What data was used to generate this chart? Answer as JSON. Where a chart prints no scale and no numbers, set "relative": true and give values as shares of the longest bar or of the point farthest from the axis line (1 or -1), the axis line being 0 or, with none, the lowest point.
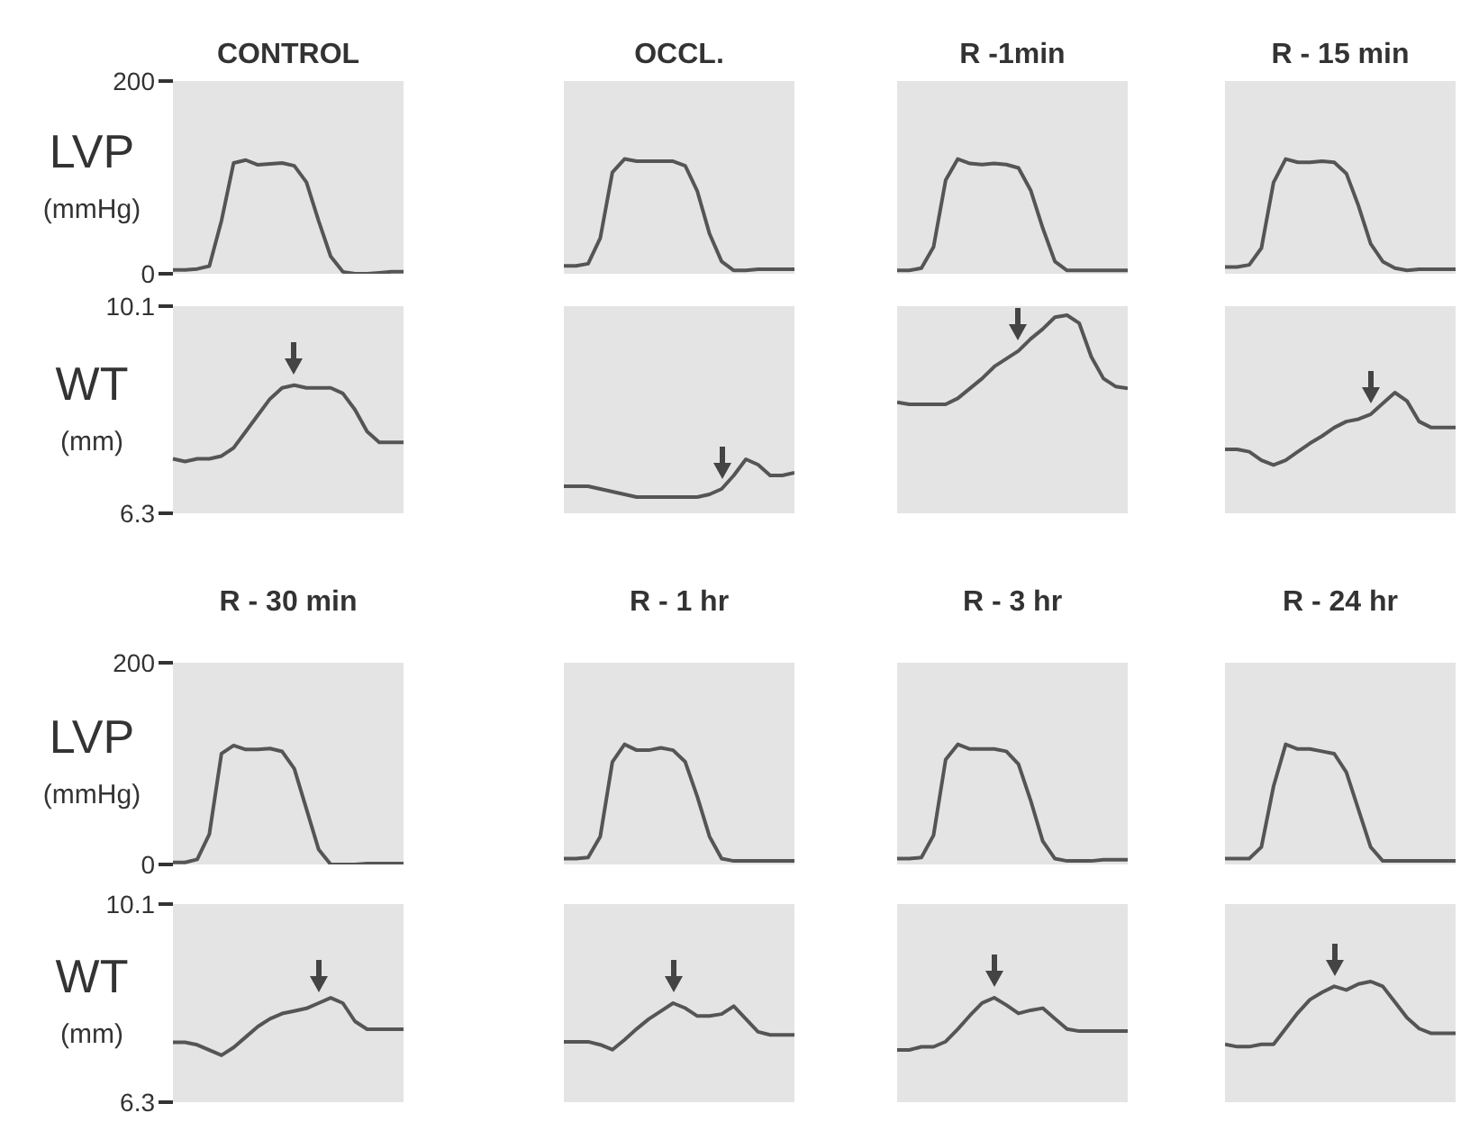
{
  "chart_data": [
    {
      "type": "line",
      "title": "CONTROL",
      "ylabel": "LVP (mmHg)",
      "categories": [
        null,
        null,
        null,
        null,
        null,
        null,
        null,
        null,
        null,
        null,
        null,
        null,
        null,
        null,
        null,
        null,
        null,
        null,
        null,
        null
      ],
      "series": [
        {
          "color": "#555555",
          "values": [
            4,
            4,
            5,
            8,
            55,
            115,
            118,
            113,
            114,
            115,
            112,
            95,
            55,
            18,
            2,
            0,
            0,
            1,
            2,
            2
          ]
        }
      ],
      "ylim": [
        0,
        200
      ],
      "yticks": [
        0,
        200
      ],
      "tick_labels": "y",
      "grid": false,
      "legend": false
    },
    {
      "type": "line",
      "ylabel": "WT (mm)",
      "categories": [
        null,
        null,
        null,
        null,
        null,
        null,
        null,
        null,
        null,
        null,
        null,
        null,
        null,
        null,
        null,
        null,
        null,
        null,
        null,
        null
      ],
      "series": [
        {
          "color": "#555555",
          "values": [
            7.3,
            7.25,
            7.3,
            7.3,
            7.35,
            7.5,
            7.8,
            8.1,
            8.4,
            8.6,
            8.65,
            8.6,
            8.6,
            8.6,
            8.5,
            8.2,
            7.8,
            7.6,
            7.6,
            7.6
          ]
        }
      ],
      "ylim": [
        6.3,
        10.1
      ],
      "yticks": [
        6.3,
        10.1
      ],
      "tick_labels": "y",
      "grid": false,
      "legend": false
    },
    {
      "type": "line",
      "title": "OCCL.",
      "relative": true,
      "categories": [
        null,
        null,
        null,
        null,
        null,
        null,
        null,
        null,
        null,
        null,
        null,
        null,
        null,
        null,
        null,
        null,
        null,
        null,
        null,
        null
      ],
      "series": [
        {
          "color": "#555555",
          "values": [
            0.04,
            0.04,
            0.06,
            0.29,
            0.88,
            1,
            0.98,
            0.98,
            0.98,
            0.98,
            0.94,
            0.71,
            0.33,
            0.08,
            0,
            0,
            0.01,
            0.01,
            0.01,
            0.01
          ]
        }
      ],
      "grid": false,
      "legend": false
    },
    {
      "type": "line",
      "relative": true,
      "categories": [
        null,
        null,
        null,
        null,
        null,
        null,
        null,
        null,
        null,
        null,
        null,
        null,
        null,
        null,
        null,
        null,
        null,
        null,
        null,
        null
      ],
      "series": [
        {
          "color": "#555555",
          "values": [
            0.5,
            0.5,
            0.5,
            0.45,
            0.4,
            0.35,
            0.3,
            0.3,
            0.3,
            0.3,
            0.3,
            0.3,
            0.35,
            0.45,
            0.7,
            1,
            0.9,
            0.7,
            0.7,
            0.75
          ]
        }
      ],
      "grid": false,
      "legend": false
    },
    {
      "type": "line",
      "title": "R -1min",
      "relative": true,
      "categories": [
        null,
        null,
        null,
        null,
        null,
        null,
        null,
        null,
        null,
        null,
        null,
        null,
        null,
        null,
        null,
        null,
        null,
        null,
        null,
        null
      ],
      "series": [
        {
          "color": "#555555",
          "values": [
            0,
            0,
            0.02,
            0.21,
            0.81,
            1,
            0.96,
            0.95,
            0.96,
            0.95,
            0.92,
            0.72,
            0.38,
            0.08,
            0,
            0,
            0,
            0,
            0,
            0
          ]
        }
      ],
      "grid": false,
      "legend": false
    },
    {
      "type": "line",
      "relative": true,
      "categories": [
        null,
        null,
        null,
        null,
        null,
        null,
        null,
        null,
        null,
        null,
        null,
        null,
        null,
        null,
        null,
        null,
        null,
        null,
        null,
        null
      ],
      "series": [
        {
          "color": "#555555",
          "values": [
            0.56,
            0.55,
            0.55,
            0.55,
            0.55,
            0.58,
            0.63,
            0.68,
            0.74,
            0.78,
            0.82,
            0.88,
            0.93,
            0.99,
            1,
            0.96,
            0.79,
            0.68,
            0.64,
            0.63
          ]
        }
      ],
      "grid": false,
      "legend": false
    },
    {
      "type": "line",
      "title": "R - 15 min",
      "relative": true,
      "categories": [
        null,
        null,
        null,
        null,
        null,
        null,
        null,
        null,
        null,
        null,
        null,
        null,
        null,
        null,
        null,
        null,
        null,
        null,
        null,
        null
      ],
      "series": [
        {
          "color": "#555555",
          "values": [
            0.03,
            0.03,
            0.05,
            0.2,
            0.79,
            1,
            0.97,
            0.97,
            0.98,
            0.97,
            0.87,
            0.58,
            0.24,
            0.08,
            0.02,
            0,
            0.01,
            0.01,
            0.01,
            0.01
          ]
        }
      ],
      "grid": false,
      "legend": false
    },
    {
      "type": "line",
      "relative": true,
      "categories": [
        null,
        null,
        null,
        null,
        null,
        null,
        null,
        null,
        null,
        null,
        null,
        null,
        null,
        null,
        null,
        null,
        null,
        null,
        null,
        null
      ],
      "series": [
        {
          "color": "#555555",
          "values": [
            0.53,
            0.53,
            0.51,
            0.44,
            0.4,
            0.44,
            0.51,
            0.58,
            0.64,
            0.71,
            0.76,
            0.78,
            0.82,
            0.91,
            1,
            0.93,
            0.76,
            0.71,
            0.71,
            0.71
          ]
        }
      ],
      "grid": false,
      "legend": false
    },
    {
      "type": "line",
      "title": "R - 30 min",
      "ylabel": "LVP (mmHg)",
      "categories": [
        null,
        null,
        null,
        null,
        null,
        null,
        null,
        null,
        null,
        null,
        null,
        null,
        null,
        null,
        null,
        null,
        null,
        null,
        null,
        null
      ],
      "series": [
        {
          "color": "#555555",
          "values": [
            2,
            2,
            5,
            30,
            110,
            118,
            114,
            114,
            115,
            112,
            95,
            55,
            15,
            0,
            0,
            0,
            1,
            1,
            1,
            1
          ]
        }
      ],
      "ylim": [
        0,
        200
      ],
      "yticks": [
        0,
        200
      ],
      "tick_labels": "y",
      "grid": false,
      "legend": false
    },
    {
      "type": "line",
      "ylabel": "WT (mm)",
      "categories": [
        null,
        null,
        null,
        null,
        null,
        null,
        null,
        null,
        null,
        null,
        null,
        null,
        null,
        null,
        null,
        null,
        null,
        null,
        null,
        null
      ],
      "series": [
        {
          "color": "#555555",
          "values": [
            7.45,
            7.45,
            7.4,
            7.3,
            7.2,
            7.35,
            7.55,
            7.75,
            7.9,
            8.0,
            8.05,
            8.1,
            8.2,
            8.3,
            8.2,
            7.85,
            7.7,
            7.7,
            7.7,
            7.7
          ]
        }
      ],
      "ylim": [
        6.3,
        10.1
      ],
      "yticks": [
        6.3,
        10.1
      ],
      "tick_labels": "y",
      "grid": false,
      "legend": false
    },
    {
      "type": "line",
      "title": "R - 1 hr",
      "relative": true,
      "categories": [
        null,
        null,
        null,
        null,
        null,
        null,
        null,
        null,
        null,
        null,
        null,
        null,
        null,
        null,
        null,
        null,
        null,
        null,
        null,
        null
      ],
      "series": [
        {
          "color": "#555555",
          "values": [
            0.02,
            0.02,
            0.03,
            0.21,
            0.85,
            1,
            0.95,
            0.95,
            0.97,
            0.95,
            0.85,
            0.55,
            0.21,
            0.02,
            0,
            0,
            0,
            0,
            0,
            0
          ]
        }
      ],
      "grid": false,
      "legend": false
    },
    {
      "type": "line",
      "relative": true,
      "categories": [
        null,
        null,
        null,
        null,
        null,
        null,
        null,
        null,
        null,
        null,
        null,
        null,
        null,
        null,
        null,
        null,
        null,
        null,
        null,
        null
      ],
      "series": [
        {
          "color": "#555555",
          "values": [
            0.61,
            0.61,
            0.61,
            0.58,
            0.53,
            0.63,
            0.74,
            0.84,
            0.92,
            1,
            0.95,
            0.87,
            0.87,
            0.89,
            0.97,
            0.84,
            0.71,
            0.68,
            0.68,
            0.68
          ]
        }
      ],
      "grid": false,
      "legend": false
    },
    {
      "type": "line",
      "title": "R - 3 hr",
      "relative": true,
      "categories": [
        null,
        null,
        null,
        null,
        null,
        null,
        null,
        null,
        null,
        null,
        null,
        null,
        null,
        null,
        null,
        null,
        null,
        null,
        null,
        null
      ],
      "series": [
        {
          "color": "#555555",
          "values": [
            0.02,
            0.02,
            0.03,
            0.22,
            0.87,
            1,
            0.96,
            0.96,
            0.96,
            0.94,
            0.83,
            0.52,
            0.17,
            0.02,
            0,
            0,
            0,
            0.01,
            0.01,
            0.01
          ]
        }
      ],
      "grid": false,
      "legend": false
    },
    {
      "type": "line",
      "relative": true,
      "categories": [
        null,
        null,
        null,
        null,
        null,
        null,
        null,
        null,
        null,
        null,
        null,
        null,
        null,
        null,
        null,
        null,
        null,
        null,
        null,
        null
      ],
      "series": [
        {
          "color": "#555555",
          "values": [
            0.5,
            0.5,
            0.53,
            0.53,
            0.58,
            0.7,
            0.83,
            0.95,
            1,
            0.93,
            0.85,
            0.88,
            0.9,
            0.8,
            0.7,
            0.68,
            0.68,
            0.68,
            0.68,
            0.68
          ]
        }
      ],
      "grid": false,
      "legend": false
    },
    {
      "type": "line",
      "title": "R - 24 hr",
      "relative": true,
      "categories": [
        null,
        null,
        null,
        null,
        null,
        null,
        null,
        null,
        null,
        null,
        null,
        null,
        null,
        null,
        null,
        null,
        null,
        null,
        null,
        null
      ],
      "series": [
        {
          "color": "#555555",
          "values": [
            0.02,
            0.02,
            0.02,
            0.12,
            0.64,
            1,
            0.96,
            0.96,
            0.94,
            0.92,
            0.76,
            0.44,
            0.12,
            0,
            0,
            0,
            0,
            0,
            0,
            0
          ]
        }
      ],
      "grid": false,
      "legend": false
    },
    {
      "type": "line",
      "relative": true,
      "categories": [
        null,
        null,
        null,
        null,
        null,
        null,
        null,
        null,
        null,
        null,
        null,
        null,
        null,
        null,
        null,
        null,
        null,
        null,
        null,
        null
      ],
      "series": [
        {
          "color": "#555555",
          "values": [
            0.48,
            0.46,
            0.46,
            0.48,
            0.48,
            0.61,
            0.74,
            0.85,
            0.91,
            0.96,
            0.93,
            0.98,
            1,
            0.96,
            0.83,
            0.7,
            0.61,
            0.57,
            0.57,
            0.57
          ]
        }
      ],
      "grid": false,
      "legend": false
    }
  ]
}
